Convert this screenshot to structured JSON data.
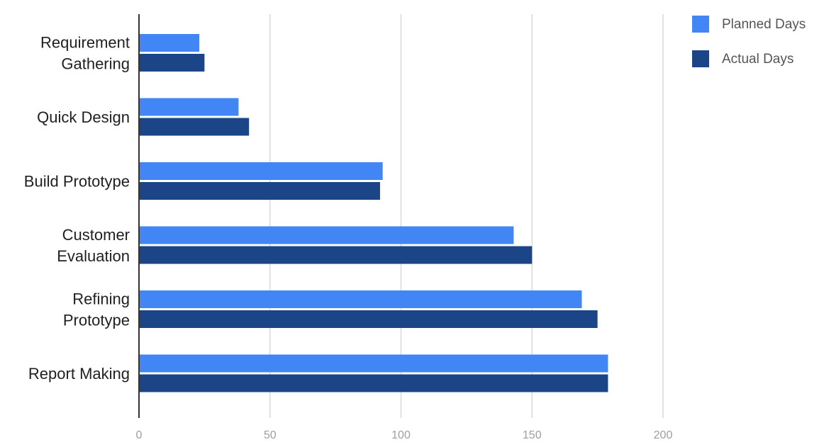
{
  "chart_data": {
    "type": "bar",
    "orientation": "horizontal",
    "categories": [
      "Requirement Gathering",
      "Quick Design",
      "Build Prototype",
      "Customer Evaluation",
      "Refining Prototype",
      "Report Making"
    ],
    "category_label_lines": [
      [
        "Requirement",
        "Gathering"
      ],
      [
        "Quick Design"
      ],
      [
        "Build Prototype"
      ],
      [
        "Customer",
        "Evaluation"
      ],
      [
        "Refining",
        "Prototype"
      ],
      [
        "Report Making"
      ]
    ],
    "series": [
      {
        "name": "Planned Days",
        "color": "#4285f4",
        "values": [
          23,
          38,
          93,
          143,
          169,
          179
        ]
      },
      {
        "name": "Actual Days",
        "color": "#1c4587",
        "values": [
          25,
          42,
          92,
          150,
          175,
          179
        ]
      }
    ],
    "x_ticks": [
      0,
      50,
      100,
      150,
      200
    ],
    "xlim": [
      0,
      200
    ],
    "grid": true,
    "legend_position": "top-right",
    "title": "",
    "xlabel": "",
    "ylabel": ""
  }
}
